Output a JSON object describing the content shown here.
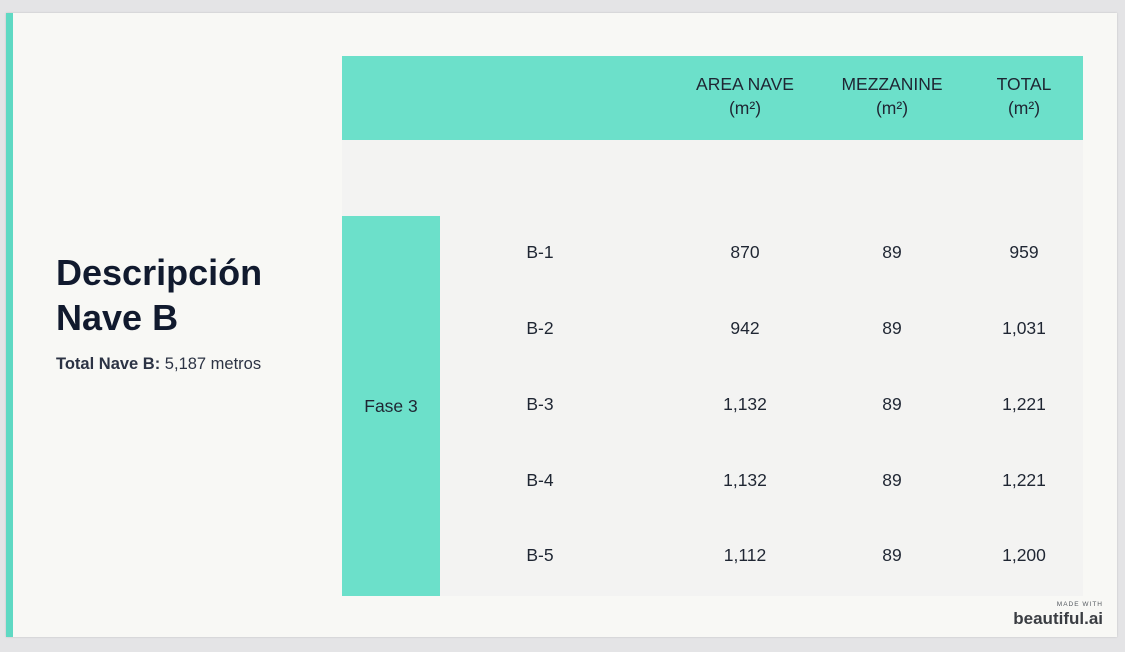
{
  "title_lines": [
    "Descripción",
    "Nave B"
  ],
  "summary": {
    "label": "Total Nave B:",
    "value": " 5,187 metros"
  },
  "table": {
    "headers": [
      {
        "line1": "AREA NAVE",
        "line2": "(m²)"
      },
      {
        "line1": "MEZZANINE",
        "line2": "(m²)"
      },
      {
        "line1": "TOTAL",
        "line2": "(m²)"
      }
    ],
    "phase": "Fase 3",
    "rows": [
      {
        "name": "B-1",
        "area": "870",
        "mezzanine": "89",
        "total": "959"
      },
      {
        "name": "B-2",
        "area": "942",
        "mezzanine": "89",
        "total": "1,031"
      },
      {
        "name": "B-3",
        "area": "1,132",
        "mezzanine": "89",
        "total": "1,221"
      },
      {
        "name": "B-4",
        "area": "1,132",
        "mezzanine": "89",
        "total": "1,221"
      },
      {
        "name": "B-5",
        "area": "1,112",
        "mezzanine": "89",
        "total": "1,200"
      }
    ]
  },
  "branding": {
    "made_with": "MADE WITH",
    "name": "beautiful.ai"
  }
}
